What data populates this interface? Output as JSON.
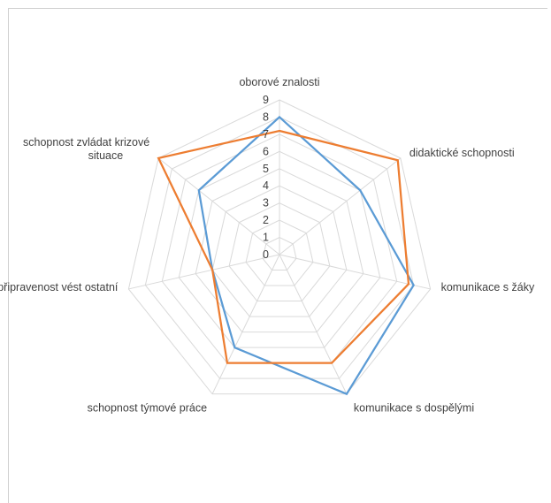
{
  "chart_data": {
    "type": "radar",
    "categories": [
      "oborové znalosti",
      "didaktické schopnosti",
      "komunikace s žáky",
      "komunikace s dospělými",
      "schopnost týmové práce",
      "připravenost vést ostatní",
      "schopnost zvládat krizové situace"
    ],
    "category_lines": [
      [
        "oborové znalosti"
      ],
      [
        "didaktické schopnosti"
      ],
      [
        "komunikace s žáky"
      ],
      [
        "komunikace s dospělými"
      ],
      [
        "schopnost týmové práce"
      ],
      [
        "připravenost vést ostatní"
      ],
      [
        "schopnost zvládat krizové",
        "situace"
      ]
    ],
    "series": [
      {
        "values": [
          8,
          6,
          8,
          9,
          6,
          4,
          6
        ],
        "color": "#5b9bd5"
      },
      {
        "values": [
          7.2,
          8.8,
          7.7,
          7,
          7,
          4,
          9
        ],
        "color": "#ed7d31"
      }
    ],
    "ticks": [
      "0",
      "1",
      "2",
      "3",
      "4",
      "5",
      "6",
      "7",
      "8",
      "9"
    ],
    "ylim": [
      0,
      9
    ],
    "grid": true,
    "legend": "none"
  }
}
